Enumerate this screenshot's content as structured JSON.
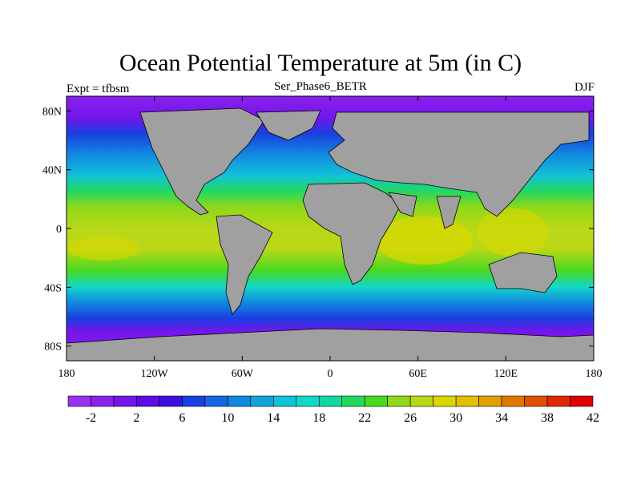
{
  "title": "Ocean Potential Temperature at 5m (in C)",
  "left_label": "Expt = tfbsm",
  "center_label": "Ser_Phase6_BETR",
  "right_label": "DJF",
  "lat_ticks": [
    {
      "value": 80,
      "label": "80N"
    },
    {
      "value": 40,
      "label": "40N"
    },
    {
      "value": 0,
      "label": "0"
    },
    {
      "value": -40,
      "label": "40S"
    },
    {
      "value": -80,
      "label": "80S"
    }
  ],
  "lon_ticks": [
    {
      "value": -180,
      "label": "180"
    },
    {
      "value": -120,
      "label": "120W"
    },
    {
      "value": -60,
      "label": "60W"
    },
    {
      "value": 0,
      "label": "0"
    },
    {
      "value": 60,
      "label": "60E"
    },
    {
      "value": 120,
      "label": "120E"
    },
    {
      "value": 180,
      "label": "180"
    }
  ],
  "colorbar": {
    "colors": [
      "#9b2ff0",
      "#8a22ee",
      "#7415ea",
      "#5e0ce6",
      "#3d0fe0",
      "#1a3fe0",
      "#1466e4",
      "#1288e0",
      "#12a5d8",
      "#12c2d8",
      "#12d8c8",
      "#12d8a0",
      "#22d860",
      "#48d820",
      "#90d818",
      "#b8d818",
      "#d8d800",
      "#e0c000",
      "#e0a000",
      "#e07800",
      "#e05000",
      "#e02800",
      "#e00000"
    ],
    "labels": [
      "-2",
      "2",
      "6",
      "10",
      "14",
      "18",
      "22",
      "26",
      "30",
      "34",
      "38",
      "42"
    ]
  },
  "chart_data": {
    "type": "heatmap",
    "title": "Ocean Potential Temperature at 5m (in C)",
    "variable": "Ocean potential temperature",
    "units": "C",
    "depth": "5m",
    "experiment": "tfbsm",
    "case": "Ser_Phase6_BETR",
    "season": "DJF",
    "xlim": [
      -180,
      180
    ],
    "ylim": [
      -90,
      90
    ],
    "colorbar_levels": [
      -2,
      2,
      6,
      10,
      14,
      18,
      22,
      26,
      30,
      34,
      38,
      42
    ],
    "zonal_temperature_profile": [
      {
        "lat": 80,
        "temp": -2
      },
      {
        "lat": 60,
        "temp": 4
      },
      {
        "lat": 40,
        "temp": 14
      },
      {
        "lat": 20,
        "temp": 24
      },
      {
        "lat": 0,
        "temp": 27
      },
      {
        "lat": -20,
        "temp": 26
      },
      {
        "lat": -40,
        "temp": 16
      },
      {
        "lat": -55,
        "temp": 6
      },
      {
        "lat": -70,
        "temp": -1
      }
    ]
  }
}
